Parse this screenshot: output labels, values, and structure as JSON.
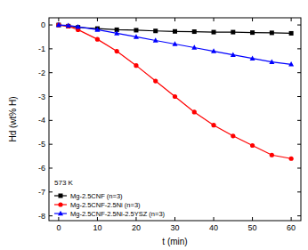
{
  "chart_data": {
    "type": "line",
    "x_label": "t (min)",
    "y_label": "Hd (wt% H)",
    "annotation": "573 K",
    "x": [
      0,
      2.5,
      5,
      10,
      15,
      20,
      25,
      30,
      35,
      40,
      45,
      50,
      55,
      60
    ],
    "series": [
      {
        "name": "Mg-2.5CNF (n=3)",
        "color": "#000000",
        "marker": "square",
        "values": [
          0,
          -0.05,
          -0.1,
          -0.15,
          -0.2,
          -0.22,
          -0.25,
          -0.27,
          -0.28,
          -0.3,
          -0.3,
          -0.32,
          -0.33,
          -0.35
        ]
      },
      {
        "name": "Mg-2.5CNF-2.5Ni (n=3)",
        "color": "#ff0000",
        "marker": "circle",
        "values": [
          0,
          -0.05,
          -0.2,
          -0.6,
          -1.1,
          -1.7,
          -2.35,
          -3.0,
          -3.65,
          -4.2,
          -4.65,
          -5.05,
          -5.45,
          -5.6
        ]
      },
      {
        "name": "Mg-2.5CNF-2.5Ni-2.5YSZ (n=3)",
        "color": "#0000ff",
        "marker": "triangle",
        "values": [
          0,
          -0.02,
          -0.08,
          -0.2,
          -0.35,
          -0.5,
          -0.65,
          -0.8,
          -0.95,
          -1.1,
          -1.25,
          -1.4,
          -1.55,
          -1.65
        ]
      }
    ],
    "xlim": [
      -2.5,
      62.5
    ],
    "xticks": [
      0,
      10,
      20,
      30,
      40,
      50,
      60
    ],
    "ylim": [
      -8.2,
      0.3
    ],
    "yticks": [
      -8,
      -7,
      -6,
      -5,
      -4,
      -3,
      -2,
      -1,
      0
    ],
    "legend": "lower-left",
    "grid": false
  }
}
